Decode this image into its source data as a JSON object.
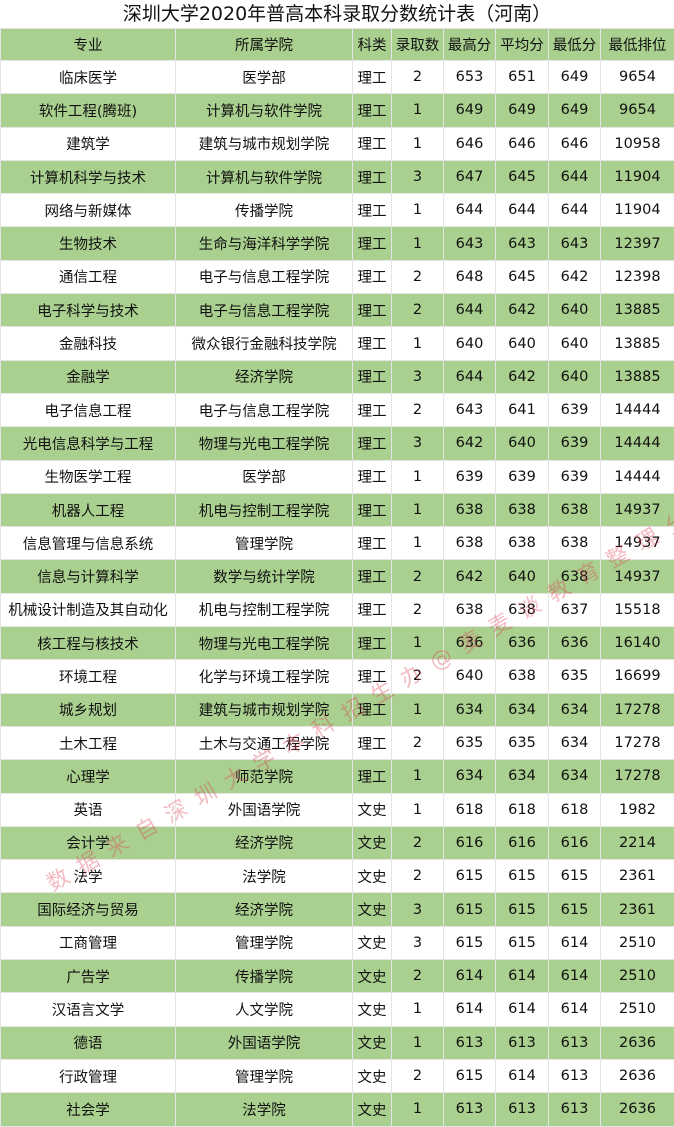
{
  "title": "深圳大学2020年普高本科录取分数统计表（河南）",
  "watermark": "数据来自深圳大学本科招生办@麦麦谈教育整理分享！",
  "colors": {
    "row_green": "#a9d08e"
  },
  "columns": [
    "专业",
    "所属学院",
    "科类",
    "录取数",
    "最高分",
    "平均分",
    "最低分",
    "最低排位"
  ],
  "rows": [
    [
      "临床医学",
      "医学部",
      "理工",
      "2",
      "653",
      "651",
      "649",
      "9654"
    ],
    [
      "软件工程(腾班)",
      "计算机与软件学院",
      "理工",
      "1",
      "649",
      "649",
      "649",
      "9654"
    ],
    [
      "建筑学",
      "建筑与城市规划学院",
      "理工",
      "1",
      "646",
      "646",
      "646",
      "10958"
    ],
    [
      "计算机科学与技术",
      "计算机与软件学院",
      "理工",
      "3",
      "647",
      "645",
      "644",
      "11904"
    ],
    [
      "网络与新媒体",
      "传播学院",
      "理工",
      "1",
      "644",
      "644",
      "644",
      "11904"
    ],
    [
      "生物技术",
      "生命与海洋科学学院",
      "理工",
      "1",
      "643",
      "643",
      "643",
      "12397"
    ],
    [
      "通信工程",
      "电子与信息工程学院",
      "理工",
      "2",
      "648",
      "645",
      "642",
      "12398"
    ],
    [
      "电子科学与技术",
      "电子与信息工程学院",
      "理工",
      "2",
      "644",
      "642",
      "640",
      "13885"
    ],
    [
      "金融科技",
      "微众银行金融科技学院",
      "理工",
      "1",
      "640",
      "640",
      "640",
      "13885"
    ],
    [
      "金融学",
      "经济学院",
      "理工",
      "3",
      "644",
      "642",
      "640",
      "13885"
    ],
    [
      "电子信息工程",
      "电子与信息工程学院",
      "理工",
      "2",
      "643",
      "641",
      "639",
      "14444"
    ],
    [
      "光电信息科学与工程",
      "物理与光电工程学院",
      "理工",
      "3",
      "642",
      "640",
      "639",
      "14444"
    ],
    [
      "生物医学工程",
      "医学部",
      "理工",
      "1",
      "639",
      "639",
      "639",
      "14444"
    ],
    [
      "机器人工程",
      "机电与控制工程学院",
      "理工",
      "1",
      "638",
      "638",
      "638",
      "14937"
    ],
    [
      "信息管理与信息系统",
      "管理学院",
      "理工",
      "1",
      "638",
      "638",
      "638",
      "14937"
    ],
    [
      "信息与计算科学",
      "数学与统计学院",
      "理工",
      "2",
      "642",
      "640",
      "638",
      "14937"
    ],
    [
      "机械设计制造及其自动化",
      "机电与控制工程学院",
      "理工",
      "2",
      "638",
      "638",
      "637",
      "15518"
    ],
    [
      "核工程与核技术",
      "物理与光电工程学院",
      "理工",
      "1",
      "636",
      "636",
      "636",
      "16140"
    ],
    [
      "环境工程",
      "化学与环境工程学院",
      "理工",
      "2",
      "640",
      "638",
      "635",
      "16699"
    ],
    [
      "城乡规划",
      "建筑与城市规划学院",
      "理工",
      "1",
      "634",
      "634",
      "634",
      "17278"
    ],
    [
      "土木工程",
      "土木与交通工程学院",
      "理工",
      "2",
      "635",
      "635",
      "634",
      "17278"
    ],
    [
      "心理学",
      "师范学院",
      "理工",
      "1",
      "634",
      "634",
      "634",
      "17278"
    ],
    [
      "英语",
      "外国语学院",
      "文史",
      "1",
      "618",
      "618",
      "618",
      "1982"
    ],
    [
      "会计学",
      "经济学院",
      "文史",
      "2",
      "616",
      "616",
      "616",
      "2214"
    ],
    [
      "法学",
      "法学院",
      "文史",
      "2",
      "615",
      "615",
      "615",
      "2361"
    ],
    [
      "国际经济与贸易",
      "经济学院",
      "文史",
      "3",
      "615",
      "615",
      "615",
      "2361"
    ],
    [
      "工商管理",
      "管理学院",
      "文史",
      "3",
      "615",
      "615",
      "614",
      "2510"
    ],
    [
      "广告学",
      "传播学院",
      "文史",
      "2",
      "614",
      "614",
      "614",
      "2510"
    ],
    [
      "汉语言文学",
      "人文学院",
      "文史",
      "1",
      "614",
      "614",
      "614",
      "2510"
    ],
    [
      "德语",
      "外国语学院",
      "文史",
      "1",
      "613",
      "613",
      "613",
      "2636"
    ],
    [
      "行政管理",
      "管理学院",
      "文史",
      "2",
      "615",
      "614",
      "613",
      "2636"
    ],
    [
      "社会学",
      "法学院",
      "文史",
      "1",
      "613",
      "613",
      "613",
      "2636"
    ]
  ]
}
